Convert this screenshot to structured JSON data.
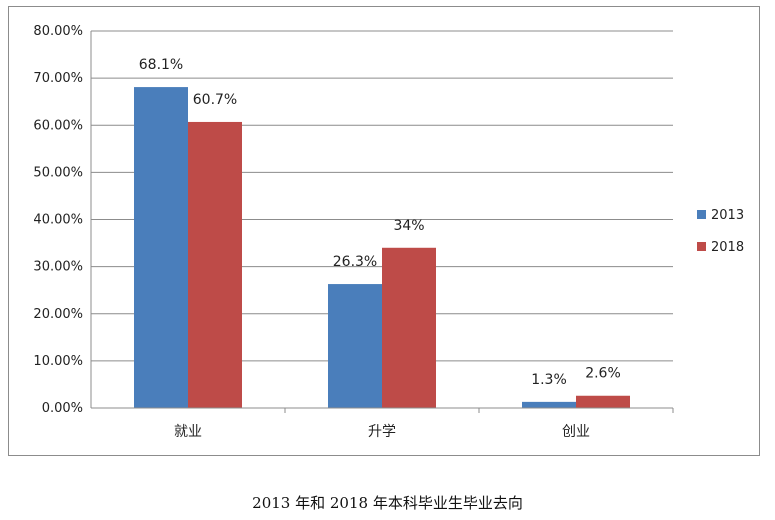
{
  "chart_data": {
    "type": "bar",
    "title": "2013 年和 2018 年本科毕业生毕业去向",
    "categories": [
      "就业",
      "升学",
      "创业"
    ],
    "series": [
      {
        "name": "2013",
        "color": "#4a7ebb",
        "values": [
          68.1,
          26.3,
          1.3
        ],
        "labels": [
          "68.1%",
          "26.3%",
          "1.3%"
        ]
      },
      {
        "name": "2018",
        "color": "#be4b48",
        "values": [
          60.7,
          34.0,
          2.6
        ],
        "labels": [
          "60.7%",
          "34%",
          "2.6%"
        ]
      }
    ],
    "ylim": [
      0,
      80
    ],
    "yticks": [
      0,
      10,
      20,
      30,
      40,
      50,
      60,
      70,
      80
    ],
    "ytick_labels": [
      "0.00%",
      "10.00%",
      "20.00%",
      "30.00%",
      "40.00%",
      "50.00%",
      "60.00%",
      "70.00%",
      "80.00%"
    ],
    "grid": true,
    "legend": "right",
    "xlabel": "",
    "ylabel": ""
  }
}
